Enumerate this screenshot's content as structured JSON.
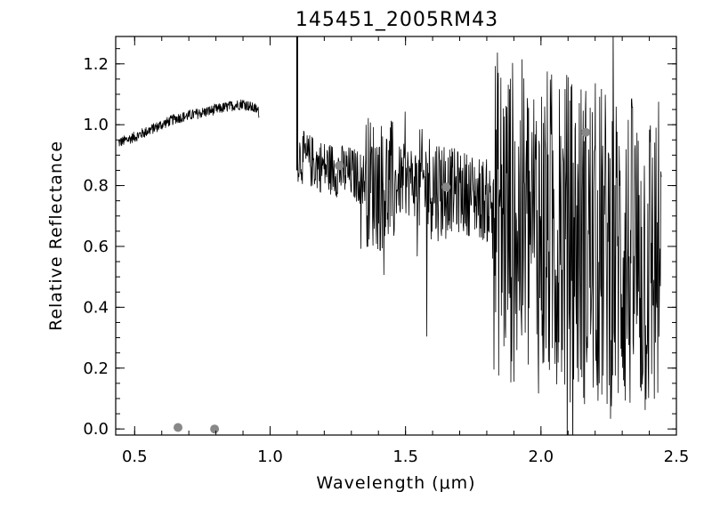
{
  "chart_data": {
    "type": "line",
    "title": "145451_2005RM43",
    "xlabel": "Wavelength (μm)",
    "ylabel": "Relative Reflectance",
    "xlim": [
      0.43,
      2.5
    ],
    "ylim": [
      -0.02,
      1.29
    ],
    "xticks": [
      "0.5",
      "1.0",
      "1.5",
      "2.0",
      "2.5"
    ],
    "yticks": [
      "0.0",
      "0.2",
      "0.4",
      "0.6",
      "0.8",
      "1.0",
      "1.2"
    ],
    "grid": false,
    "legend": "none",
    "series": [
      {
        "style": "line",
        "color": "#000000",
        "x": [
          0.44,
          0.5,
          0.55,
          0.6,
          0.65,
          0.7,
          0.75,
          0.8,
          0.85,
          0.9,
          0.95,
          1.1,
          1.15,
          1.2,
          1.25,
          1.3,
          1.35,
          1.4,
          1.45,
          1.5,
          1.55,
          1.6,
          1.65,
          1.7,
          1.75,
          1.8,
          1.85,
          1.9,
          1.95,
          2.0,
          2.05,
          2.1,
          2.15,
          2.2,
          2.25,
          2.3,
          2.35,
          2.4,
          2.44
        ],
        "y": [
          0.94,
          0.96,
          0.98,
          1.0,
          1.02,
          1.03,
          1.04,
          1.05,
          1.06,
          1.07,
          1.05,
          0.9,
          0.88,
          0.86,
          0.85,
          0.84,
          0.82,
          0.8,
          0.8,
          0.82,
          0.81,
          0.8,
          0.79,
          0.78,
          0.77,
          0.75,
          0.7,
          0.68,
          0.66,
          0.65,
          0.64,
          0.63,
          0.62,
          0.6,
          0.58,
          0.57,
          0.55,
          0.55,
          0.55
        ]
      },
      {
        "style": "points",
        "color": "#888888",
        "x": [
          0.66,
          0.795,
          1.255,
          1.65,
          2.165
        ],
        "y": [
          0.005,
          0.0,
          0.865,
          0.795,
          0.975
        ]
      }
    ]
  }
}
